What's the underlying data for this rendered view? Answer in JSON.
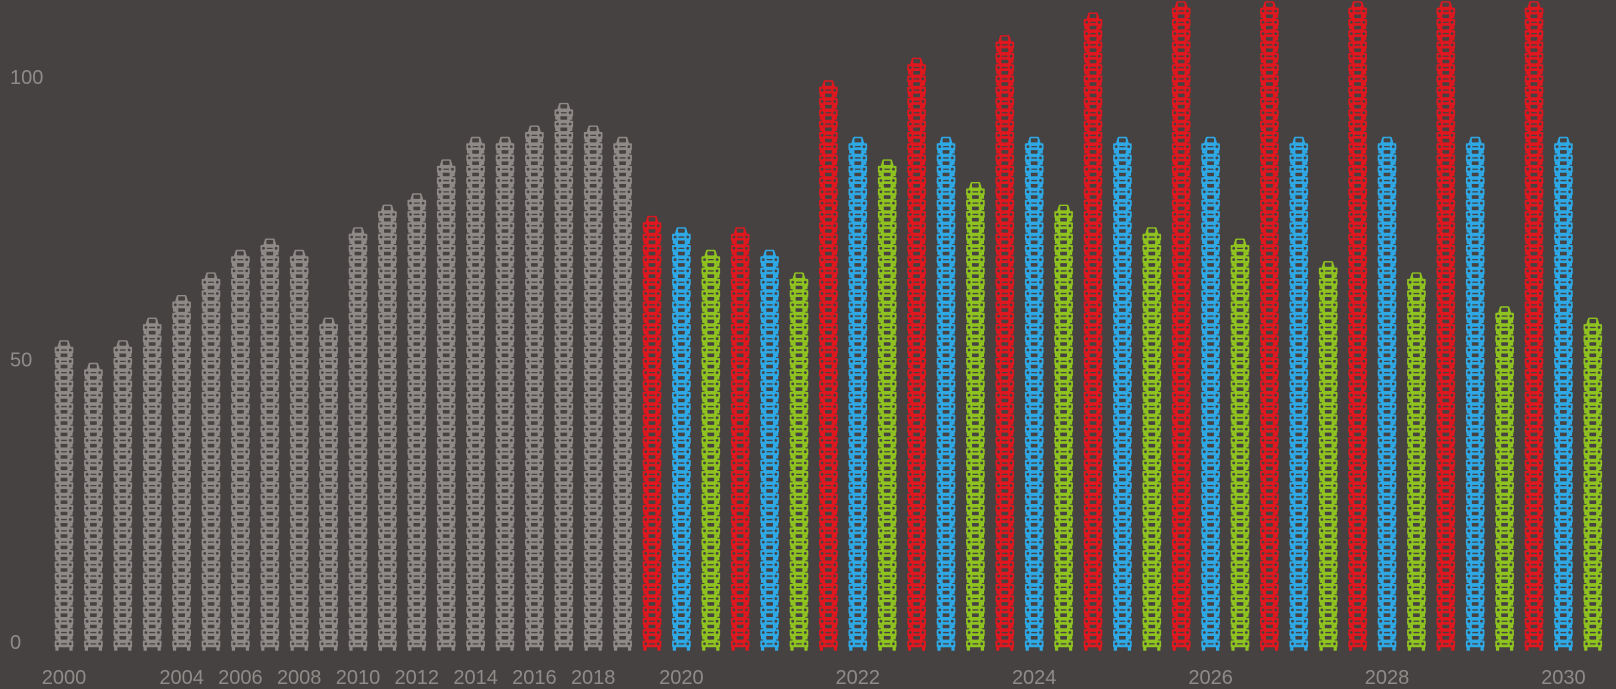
{
  "chart_data": {
    "type": "bar",
    "unit_pictogram": "car-icon",
    "ylim": [
      0,
      100
    ],
    "yticks": [
      "0",
      "50",
      "100"
    ],
    "x_tick_labels": [
      "2000",
      "2004",
      "2006",
      "2008",
      "2010",
      "2012",
      "2014",
      "2016",
      "2018",
      "2020",
      "2022",
      "2024",
      "2026",
      "2028",
      "2030"
    ],
    "colors": {
      "historical": "#8f8a88",
      "red": "#e0171e",
      "blue": "#2ea9e6",
      "green": "#8fc31f"
    },
    "historical": {
      "years": [
        "2000",
        "2001",
        "2002",
        "2003",
        "2004",
        "2005",
        "2006",
        "2007",
        "2008",
        "2009",
        "2010",
        "2011",
        "2012",
        "2013",
        "2014",
        "2015",
        "2016",
        "2017",
        "2018",
        "2019"
      ],
      "values": [
        54,
        50,
        54,
        58,
        62,
        66,
        70,
        72,
        70,
        57,
        74,
        78,
        80,
        86,
        90,
        90,
        92,
        96,
        92,
        90
      ]
    },
    "scenarios": {
      "years": [
        "2020",
        "2021",
        "2022",
        "2023",
        "2024",
        "2025",
        "2026",
        "2027",
        "2028",
        "2029",
        "2030"
      ],
      "series": [
        {
          "color_key": "red",
          "values": [
            76,
            74,
            100,
            104,
            108,
            112,
            116,
            116,
            116,
            116,
            116
          ]
        },
        {
          "color_key": "blue",
          "values": [
            74,
            70,
            90,
            90,
            90,
            90,
            90,
            90,
            90,
            90,
            90
          ]
        },
        {
          "color_key": "green",
          "values": [
            70,
            66,
            86,
            82,
            78,
            74,
            72,
            68,
            66,
            60,
            58
          ]
        }
      ]
    }
  }
}
